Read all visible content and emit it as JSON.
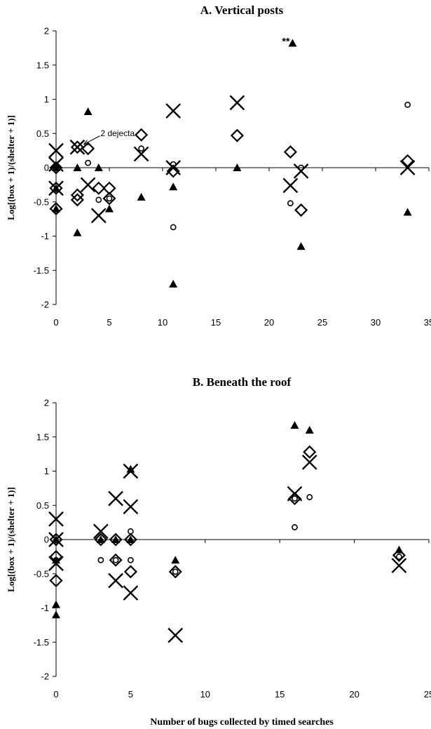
{
  "chart_data": [
    {
      "type": "scatter",
      "title": "A. Vertical posts",
      "ylabel": "Log[(box + 1)/(shelter + 1)]",
      "xlabel": "",
      "xlim": [
        0,
        35
      ],
      "ylim": [
        -2,
        2
      ],
      "x_ticks": [
        "0",
        "5",
        "10",
        "15",
        "20",
        "25",
        "30",
        "35"
      ],
      "y_ticks": [
        "2",
        "1.5",
        "1",
        "0.5",
        "0",
        "-0.5",
        "-1",
        "-1.5",
        "-2"
      ],
      "annotations": [
        {
          "text": "2 dejecta",
          "x": 2.2,
          "y": 0.3
        },
        {
          "text": "**",
          "x": 22.2,
          "y": 1.82
        }
      ],
      "series": [
        {
          "marker": "triangle",
          "points": [
            [
              0,
              0
            ],
            [
              0,
              -0.3
            ],
            [
              0,
              -0.6
            ],
            [
              2,
              0
            ],
            [
              2,
              -0.95
            ],
            [
              3,
              0.82
            ],
            [
              4,
              0
            ],
            [
              5,
              -0.6
            ],
            [
              8,
              -0.43
            ],
            [
              11,
              -0.28
            ],
            [
              11,
              -1.7
            ],
            [
              17,
              0
            ],
            [
              22.2,
              1.82
            ],
            [
              23,
              -1.15
            ],
            [
              33,
              -0.65
            ]
          ]
        },
        {
          "marker": "diamond",
          "points": [
            [
              0,
              0
            ],
            [
              0,
              -0.3
            ],
            [
              0,
              -0.6
            ],
            [
              2,
              0.3
            ],
            [
              2,
              -0.4
            ],
            [
              2,
              -0.47
            ],
            [
              3,
              0.28
            ],
            [
              4,
              -0.3
            ],
            [
              5,
              -0.3
            ],
            [
              5,
              -0.45
            ],
            [
              8,
              0.48
            ],
            [
              11,
              -0.05
            ],
            [
              17,
              0.47
            ],
            [
              22,
              0.23
            ],
            [
              23,
              -0.62
            ],
            [
              33,
              0.1
            ]
          ]
        },
        {
          "marker": "circle",
          "points": [
            [
              3,
              0.07
            ],
            [
              4,
              -0.47
            ],
            [
              5,
              -0.45
            ],
            [
              8,
              0.28
            ],
            [
              11,
              0.05
            ],
            [
              11,
              -0.87
            ],
            [
              22,
              -0.52
            ],
            [
              23,
              0
            ],
            [
              33,
              0.92
            ]
          ]
        },
        {
          "marker": "cross",
          "points": [
            [
              0,
              0.25
            ],
            [
              0,
              0.05
            ],
            [
              0,
              -0.3
            ],
            [
              2,
              0.3
            ],
            [
              3,
              -0.25
            ],
            [
              4,
              -0.7
            ],
            [
              8,
              0.2
            ],
            [
              11,
              0.83
            ],
            [
              11,
              0
            ],
            [
              17,
              0.95
            ],
            [
              22,
              -0.26
            ],
            [
              23,
              -0.05
            ],
            [
              33,
              0
            ]
          ]
        }
      ]
    },
    {
      "type": "scatter",
      "title": "B. Beneath the roof",
      "ylabel": "Log[(box + 1)/(shelter + 1)]",
      "xlabel": "Number of bugs collected by timed searches",
      "xlim": [
        0,
        25
      ],
      "ylim": [
        -2,
        2
      ],
      "x_ticks": [
        "0",
        "5",
        "10",
        "15",
        "20",
        "25"
      ],
      "y_ticks": [
        "2",
        "1.5",
        "1",
        "0.5",
        "0",
        "-0.5",
        "-1",
        "-1.5",
        "-2"
      ],
      "annotations": [],
      "series": [
        {
          "marker": "triangle",
          "points": [
            [
              0,
              0
            ],
            [
              0,
              -0.3
            ],
            [
              0,
              -0.95
            ],
            [
              0,
              -1.1
            ],
            [
              3,
              0
            ],
            [
              4,
              0
            ],
            [
              5,
              0
            ],
            [
              5,
              1.03
            ],
            [
              8,
              -0.3
            ],
            [
              16,
              1.67
            ],
            [
              17,
              1.6
            ],
            [
              23,
              -0.15
            ]
          ]
        },
        {
          "marker": "diamond",
          "points": [
            [
              0,
              0
            ],
            [
              0,
              -0.25
            ],
            [
              0,
              -0.6
            ],
            [
              3,
              0
            ],
            [
              4,
              0
            ],
            [
              4,
              -0.3
            ],
            [
              5,
              0
            ],
            [
              5,
              -0.47
            ],
            [
              8,
              -0.47
            ],
            [
              16,
              0.6
            ],
            [
              17,
              1.28
            ],
            [
              23,
              -0.23
            ]
          ]
        },
        {
          "marker": "circle",
          "points": [
            [
              0,
              -0.3
            ],
            [
              3,
              -0.3
            ],
            [
              4,
              -0.3
            ],
            [
              5,
              0.12
            ],
            [
              5,
              -0.3
            ],
            [
              8,
              -0.47
            ],
            [
              16,
              0.18
            ],
            [
              16,
              0.6
            ],
            [
              17,
              0.62
            ],
            [
              23,
              -0.25
            ]
          ]
        },
        {
          "marker": "cross",
          "points": [
            [
              0,
              0.3
            ],
            [
              0,
              0
            ],
            [
              0,
              -0.35
            ],
            [
              3,
              0.12
            ],
            [
              4,
              0.6
            ],
            [
              4,
              -0.6
            ],
            [
              5,
              1.0
            ],
            [
              5,
              0.48
            ],
            [
              5,
              -0.78
            ],
            [
              8,
              -1.4
            ],
            [
              16,
              0.67
            ],
            [
              17,
              1.13
            ],
            [
              23,
              -0.38
            ]
          ]
        }
      ]
    }
  ]
}
